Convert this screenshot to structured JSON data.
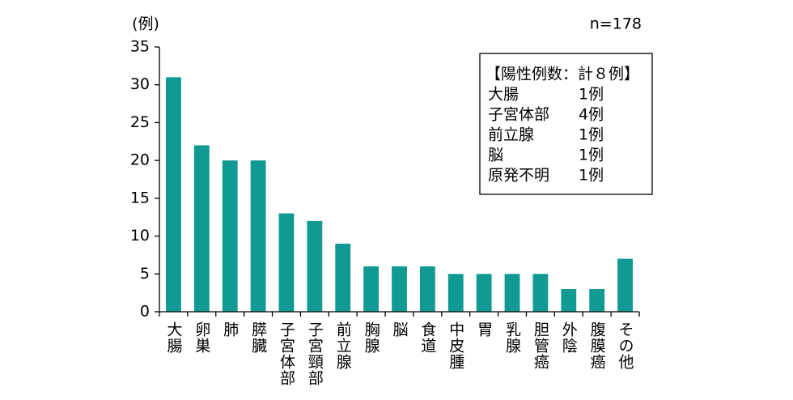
{
  "chart_data": {
    "type": "bar",
    "y_label": "(例)",
    "annotation": "n=178",
    "categories": [
      "大腸",
      "卵巣",
      "肺",
      "膵臓",
      "子宮体部",
      "子宮頸部",
      "前立腺",
      "胸腺",
      "脳",
      "食道",
      "中皮腫",
      "胃",
      "乳腺",
      "胆管癌",
      "外陰",
      "腹膜癌",
      "その他"
    ],
    "values": [
      31,
      22,
      20,
      20,
      13,
      12,
      9,
      6,
      6,
      6,
      5,
      5,
      5,
      5,
      3,
      3,
      7
    ],
    "color": "#109a93",
    "ylim": [
      0,
      35
    ],
    "yticks": [
      0,
      5,
      10,
      15,
      20,
      25,
      30,
      35
    ],
    "grid": false,
    "annotation_box": {
      "title": "【陽性例数：計８例】",
      "rows": [
        [
          "大腸",
          "1例"
        ],
        [
          "子宮体部",
          "4例"
        ],
        [
          "前立腺",
          "1例"
        ],
        [
          "脳",
          "1例"
        ],
        [
          "原発不明",
          "1例"
        ]
      ]
    }
  }
}
